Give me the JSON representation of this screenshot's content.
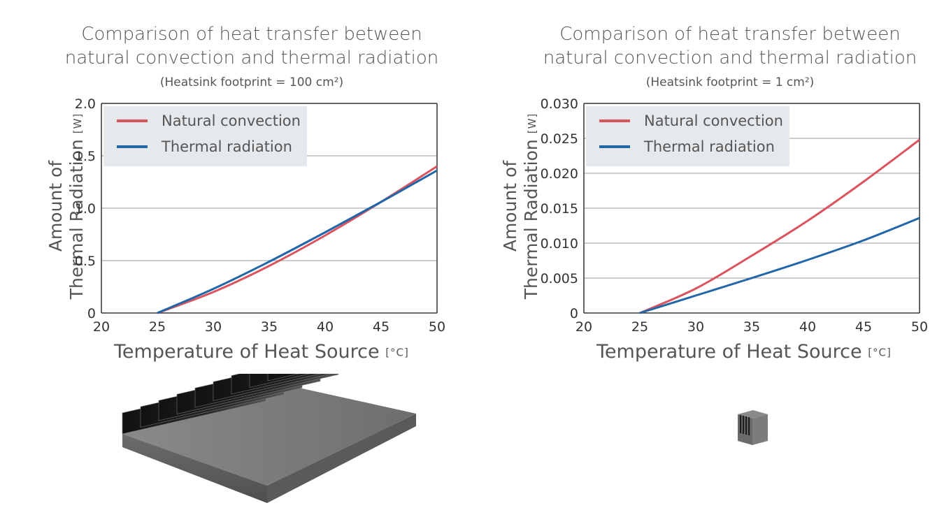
{
  "charts": [
    {
      "title_line1": "Comparison of heat transfer between",
      "title_line2": "natural convection and thermal radiation",
      "subtitle": "(Heatsink footprint = 100 cm²)",
      "ylabel_line1": "Amount of",
      "ylabel_line2": "Thermal Radiation",
      "ylabel_unit": "[W]",
      "xlabel": "Temperature of Heat Source",
      "xlabel_unit": "[°C]",
      "legend": [
        "Natural convection",
        "Thermal radiation"
      ],
      "heatsink_icon": "large-heatsink-icon"
    },
    {
      "title_line1": "Comparison of heat transfer between",
      "title_line2": "natural convection and thermal radiation",
      "subtitle": "(Heatsink footprint = 1 cm²)",
      "ylabel_line1": "Amount of",
      "ylabel_line2": "Thermal Radiation",
      "ylabel_unit": "[W]",
      "xlabel": "Temperature of Heat Source",
      "xlabel_unit": "[°C]",
      "legend": [
        "Natural convection",
        "Thermal radiation"
      ],
      "heatsink_icon": "small-heatsink-icon"
    }
  ],
  "colors": {
    "natural_convection": "#d9545e",
    "thermal_radiation": "#2166a8",
    "legend_bg": "#e6e9ec",
    "grid": "#9a9a9a"
  },
  "chart_data": [
    {
      "type": "line",
      "title": "Comparison of heat transfer between natural convection and thermal radiation",
      "subtitle": "(Heatsink footprint = 100 cm²)",
      "xlabel": "Temperature of Heat Source [°C]",
      "ylabel": "Amount of Thermal Radiation [W]",
      "xlim": [
        20,
        50
      ],
      "ylim": [
        0,
        2.0
      ],
      "xticks": [
        20,
        25,
        30,
        35,
        40,
        45,
        50
      ],
      "yticks": [
        0,
        0.5,
        1.0,
        1.5,
        2.0
      ],
      "ytick_labels": [
        "0",
        "0.5",
        "1.0",
        "1.5",
        "2.0"
      ],
      "grid": true,
      "legend_position": "top-left",
      "series": [
        {
          "name": "Natural convection",
          "x": [
            25,
            30,
            35,
            40,
            45,
            50
          ],
          "y": [
            0,
            0.2,
            0.45,
            0.74,
            1.06,
            1.4
          ]
        },
        {
          "name": "Thermal radiation",
          "x": [
            25,
            30,
            35,
            40,
            45,
            50
          ],
          "y": [
            0,
            0.23,
            0.49,
            0.77,
            1.06,
            1.36
          ]
        }
      ]
    },
    {
      "type": "line",
      "title": "Comparison of heat transfer between natural convection and thermal radiation",
      "subtitle": "(Heatsink footprint = 1 cm²)",
      "xlabel": "Temperature of Heat Source [°C]",
      "ylabel": "Amount of Thermal Radiation [W]",
      "xlim": [
        20,
        50
      ],
      "ylim": [
        0,
        0.03
      ],
      "xticks": [
        20,
        25,
        30,
        35,
        40,
        45,
        50
      ],
      "yticks": [
        0,
        0.005,
        0.01,
        0.015,
        0.02,
        0.025,
        0.03
      ],
      "ytick_labels": [
        "0",
        "0.005",
        "0.010",
        "0.015",
        "0.020",
        "0.025",
        "0.030"
      ],
      "grid": true,
      "legend_position": "top-left",
      "series": [
        {
          "name": "Natural convection",
          "x": [
            25,
            30,
            35,
            40,
            45,
            50
          ],
          "y": [
            0,
            0.0035,
            0.0082,
            0.0132,
            0.0188,
            0.0248
          ]
        },
        {
          "name": "Thermal radiation",
          "x": [
            25,
            30,
            35,
            40,
            45,
            50
          ],
          "y": [
            0,
            0.0025,
            0.005,
            0.0076,
            0.0104,
            0.0136
          ]
        }
      ]
    }
  ]
}
